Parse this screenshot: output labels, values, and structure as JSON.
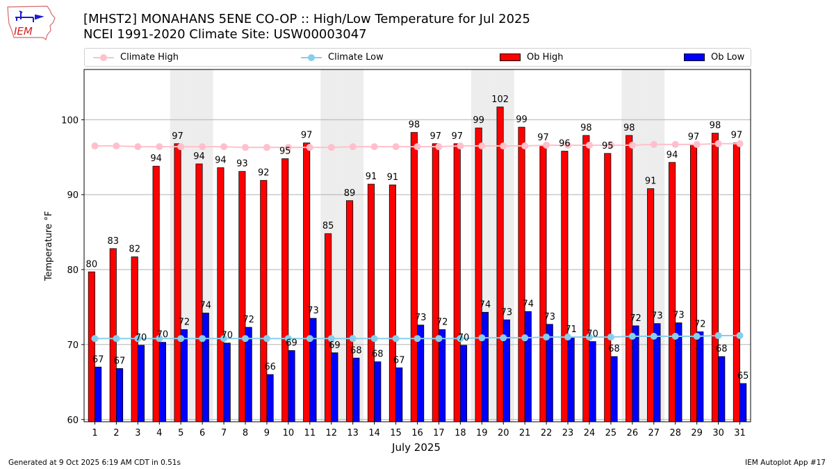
{
  "header": {
    "logo_text": "IEM",
    "title_line1": "[MHST2] MONAHANS 5ENE CO-OP :: High/Low Temperature for Jul 2025",
    "title_line2": "NCEI 1991-2020 Climate Site: USW00003047"
  },
  "legend": {
    "items": [
      {
        "label": "Climate High",
        "kind": "line-marker",
        "color": "#ffc0cb"
      },
      {
        "label": "Climate Low",
        "kind": "line-marker",
        "color": "#87ceeb"
      },
      {
        "label": "Ob High",
        "kind": "bar",
        "color": "#ff0000"
      },
      {
        "label": "Ob Low",
        "kind": "bar",
        "color": "#0000ff"
      }
    ]
  },
  "footer": {
    "generated": "Generated at 9 Oct 2025 6:19 AM CDT in 0.51s",
    "app": "IEM Autoplot App #17"
  },
  "chart_data": {
    "type": "bar",
    "title": "[MHST2] MONAHANS 5ENE CO-OP :: High/Low Temperature for Jul 2025",
    "subtitle": "NCEI 1991-2020 Climate Site: USW00003047",
    "xlabel": "July 2025",
    "ylabel": "Temperature °F",
    "ylim": [
      59.7,
      106.7
    ],
    "yticks": [
      60,
      70,
      80,
      90,
      100
    ],
    "grid": "y",
    "legend_position": "top",
    "weekend_shading_days": [
      5,
      6,
      12,
      13,
      19,
      20,
      26,
      27
    ],
    "categories": [
      "1",
      "2",
      "3",
      "4",
      "5",
      "6",
      "7",
      "8",
      "9",
      "10",
      "11",
      "12",
      "13",
      "14",
      "15",
      "16",
      "17",
      "18",
      "19",
      "20",
      "21",
      "22",
      "23",
      "24",
      "25",
      "26",
      "27",
      "28",
      "29",
      "30",
      "31"
    ],
    "series": [
      {
        "name": "Ob High",
        "kind": "bar",
        "color": "#ff0000",
        "values": [
          79.7,
          82.8,
          81.7,
          93.8,
          96.8,
          94.1,
          93.6,
          93.1,
          91.9,
          94.8,
          96.9,
          84.8,
          89.2,
          91.4,
          91.3,
          98.3,
          96.8,
          96.8,
          98.9,
          101.7,
          99.0,
          96.6,
          95.8,
          97.9,
          95.5,
          97.9,
          90.8,
          94.3,
          96.7,
          98.2,
          96.9
        ],
        "labels": [
          80,
          83,
          82,
          94,
          97,
          94,
          94,
          93,
          92,
          95,
          97,
          85,
          89,
          91,
          91,
          98,
          97,
          97,
          99,
          102,
          99,
          97,
          96,
          98,
          95,
          98,
          91,
          94,
          97,
          98,
          97
        ]
      },
      {
        "name": "Ob Low",
        "kind": "bar",
        "color": "#0000ff",
        "values": [
          67.0,
          66.8,
          69.9,
          70.3,
          72.0,
          74.2,
          70.2,
          72.3,
          66.0,
          69.2,
          73.5,
          68.9,
          68.2,
          67.7,
          66.9,
          72.6,
          72.0,
          69.9,
          74.3,
          73.3,
          74.4,
          72.7,
          71.0,
          70.4,
          68.4,
          72.5,
          72.8,
          72.9,
          71.7,
          68.4,
          64.8
        ],
        "labels": [
          67,
          67,
          70,
          70,
          72,
          74,
          70,
          72,
          66,
          69,
          73,
          69,
          68,
          68,
          67,
          73,
          72,
          70,
          74,
          73,
          74,
          73,
          71,
          70,
          68,
          72,
          73,
          73,
          72,
          68,
          65
        ]
      },
      {
        "name": "Climate High",
        "kind": "line",
        "color": "#ffc0cb",
        "values": [
          96.5,
          96.5,
          96.4,
          96.4,
          96.4,
          96.4,
          96.4,
          96.3,
          96.3,
          96.3,
          96.3,
          96.3,
          96.4,
          96.4,
          96.4,
          96.4,
          96.4,
          96.5,
          96.5,
          96.5,
          96.5,
          96.6,
          96.6,
          96.6,
          96.6,
          96.6,
          96.7,
          96.7,
          96.7,
          96.8,
          96.8
        ]
      },
      {
        "name": "Climate Low",
        "kind": "line",
        "color": "#87ceeb",
        "values": [
          70.8,
          70.8,
          70.8,
          70.8,
          70.8,
          70.8,
          70.8,
          70.8,
          70.8,
          70.8,
          70.8,
          70.8,
          70.8,
          70.8,
          70.8,
          70.8,
          70.8,
          70.8,
          70.9,
          70.9,
          70.9,
          71.0,
          71.0,
          71.0,
          71.0,
          71.1,
          71.1,
          71.1,
          71.1,
          71.2,
          71.2
        ]
      }
    ]
  }
}
